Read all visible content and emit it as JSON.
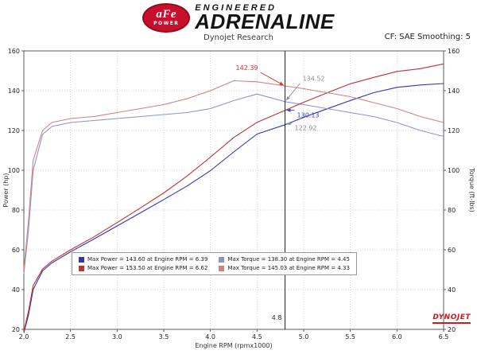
{
  "header": {
    "logo": {
      "oval_text": "aFe",
      "oval_sub": "POWER",
      "line1": "ENGINEERED",
      "line2": "ADRENALINE"
    },
    "subtitle": "Dynojet Research",
    "smoothing": "CF: SAE Smoothing: 5"
  },
  "chart_data": {
    "type": "line",
    "title": "",
    "xlabel": "Engine RPM (rpmx1000)",
    "ylabel_left": "Power (hp)",
    "ylabel_right": "Torque (ft-lbs)",
    "xlim": [
      2.0,
      6.5
    ],
    "ylim": [
      20,
      160
    ],
    "grid": true,
    "legend_position": "bottom-left-inside",
    "x_ticks": [
      2.0,
      2.5,
      3.0,
      3.5,
      4.0,
      4.5,
      5.0,
      5.5,
      6.0,
      6.5
    ],
    "x_tick_labels": [
      "2.0",
      "2.5",
      "3.0",
      "3.5",
      "4.0",
      "4.5",
      "5.0",
      "5.5",
      "6.0",
      "6.5"
    ],
    "y_ticks": [
      20,
      40,
      60,
      80,
      100,
      120,
      140,
      160
    ],
    "y_tick_labels": [
      "20",
      "40",
      "60",
      "80",
      "100",
      "120",
      "140",
      "160"
    ],
    "x": [
      2.0,
      2.05,
      2.1,
      2.2,
      2.3,
      2.5,
      2.75,
      3.0,
      3.25,
      3.5,
      3.75,
      4.0,
      4.25,
      4.5,
      4.8,
      5.0,
      5.25,
      5.5,
      5.75,
      6.0,
      6.25,
      6.5
    ],
    "series": [
      {
        "name": "power-blue",
        "color": "#3333bb",
        "legend": "Max Power = 143.60 at Engine RPM = 6.39",
        "y": [
          18.3,
          27.3,
          40.0,
          49.4,
          53.4,
          59.0,
          65.4,
          72.0,
          78.6,
          85.3,
          92.1,
          99.8,
          109.2,
          118.2,
          122.9,
          126.6,
          130.9,
          135.1,
          139.0,
          141.7,
          142.9,
          143.6
        ]
      },
      {
        "name": "torque-blue",
        "color": "#8c94cc",
        "legend": "Max Torque = 138.30 at Engine RPM = 4.45",
        "y": [
          48,
          70,
          100,
          118,
          122,
          124,
          125,
          126,
          127,
          128,
          129,
          131,
          135,
          138.3,
          134.5,
          133,
          131,
          129,
          127,
          124,
          120,
          117
        ]
      },
      {
        "name": "power-red",
        "color": "#bb3333",
        "legend": "Max Power = 153.50 at Engine RPM = 6.62",
        "y": [
          19.0,
          29.3,
          42.0,
          50.3,
          54.3,
          60.0,
          66.5,
          73.7,
          81.1,
          88.6,
          97.1,
          106.6,
          116.5,
          124.1,
          130.1,
          134.2,
          138.9,
          143.5,
          146.7,
          149.7,
          151.1,
          153.5
        ]
      },
      {
        "name": "torque-red",
        "color": "#cf8282",
        "legend": "Max Torque = 145.03 at Engine RPM = 4.33",
        "y": [
          50,
          75,
          105,
          120,
          124,
          126,
          127,
          129,
          131,
          133,
          136,
          140,
          145.0,
          144.5,
          142.4,
          141,
          139,
          137,
          134,
          131,
          127,
          124
        ]
      }
    ],
    "cursor": {
      "x": 4.8,
      "label": "4.8"
    },
    "annotations": [
      {
        "text": "142.39",
        "color": "#cc3333",
        "x": 4.8,
        "y": 142.39
      },
      {
        "text": "134.52",
        "color": "#8a8f9a",
        "x": 4.8,
        "y": 134.52
      },
      {
        "text": "130.13",
        "color": "#3344cc",
        "x": 4.8,
        "y": 130.13
      },
      {
        "text": "122.92",
        "color": "#8a8f9a",
        "x": 4.8,
        "y": 122.92
      }
    ],
    "watermark": "DYNOJET"
  }
}
